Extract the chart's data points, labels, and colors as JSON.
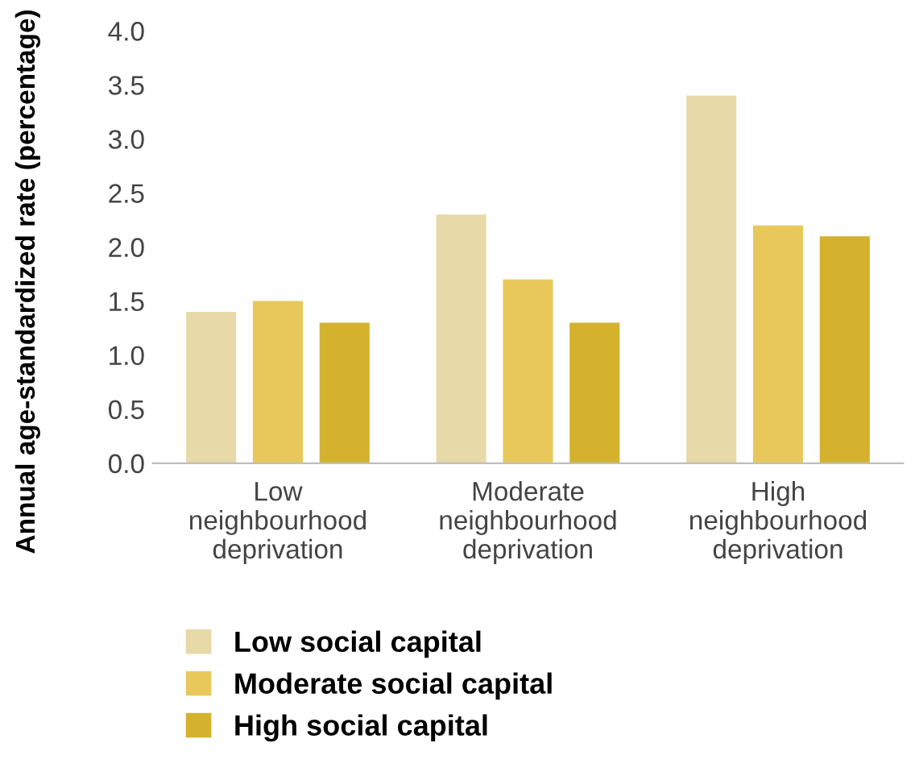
{
  "chart_data": {
    "type": "bar",
    "ylabel": "Annual age-standardized rate (percentage)",
    "categories": [
      "Low\nneighbourhood\ndeprivation",
      "Moderate\nneighbourhood\ndeprivation",
      "High\nneighbourhood\ndeprivation"
    ],
    "series": [
      {
        "name": "Low social capital",
        "color": "#e8d9a8",
        "values": [
          1.4,
          2.3,
          3.4
        ]
      },
      {
        "name": "Moderate social capital",
        "color": "#e8c85a",
        "values": [
          1.5,
          1.7,
          2.2
        ]
      },
      {
        "name": "High social capital",
        "color": "#d4b22e",
        "values": [
          1.3,
          1.3,
          2.1
        ]
      }
    ],
    "ylim": [
      0,
      4
    ],
    "yticks": [
      {
        "value": 0,
        "label": "0.0"
      },
      {
        "value": 0.5,
        "label": "0.5"
      },
      {
        "value": 1,
        "label": "1.0"
      },
      {
        "value": 1.5,
        "label": "1.5"
      },
      {
        "value": 2,
        "label": "2.0"
      },
      {
        "value": 2.5,
        "label": "2.5"
      },
      {
        "value": 3,
        "label": "3.0"
      },
      {
        "value": 3.5,
        "label": "3.5"
      },
      {
        "value": 4,
        "label": "4.0"
      }
    ],
    "grid": false,
    "legend": "bottom"
  }
}
